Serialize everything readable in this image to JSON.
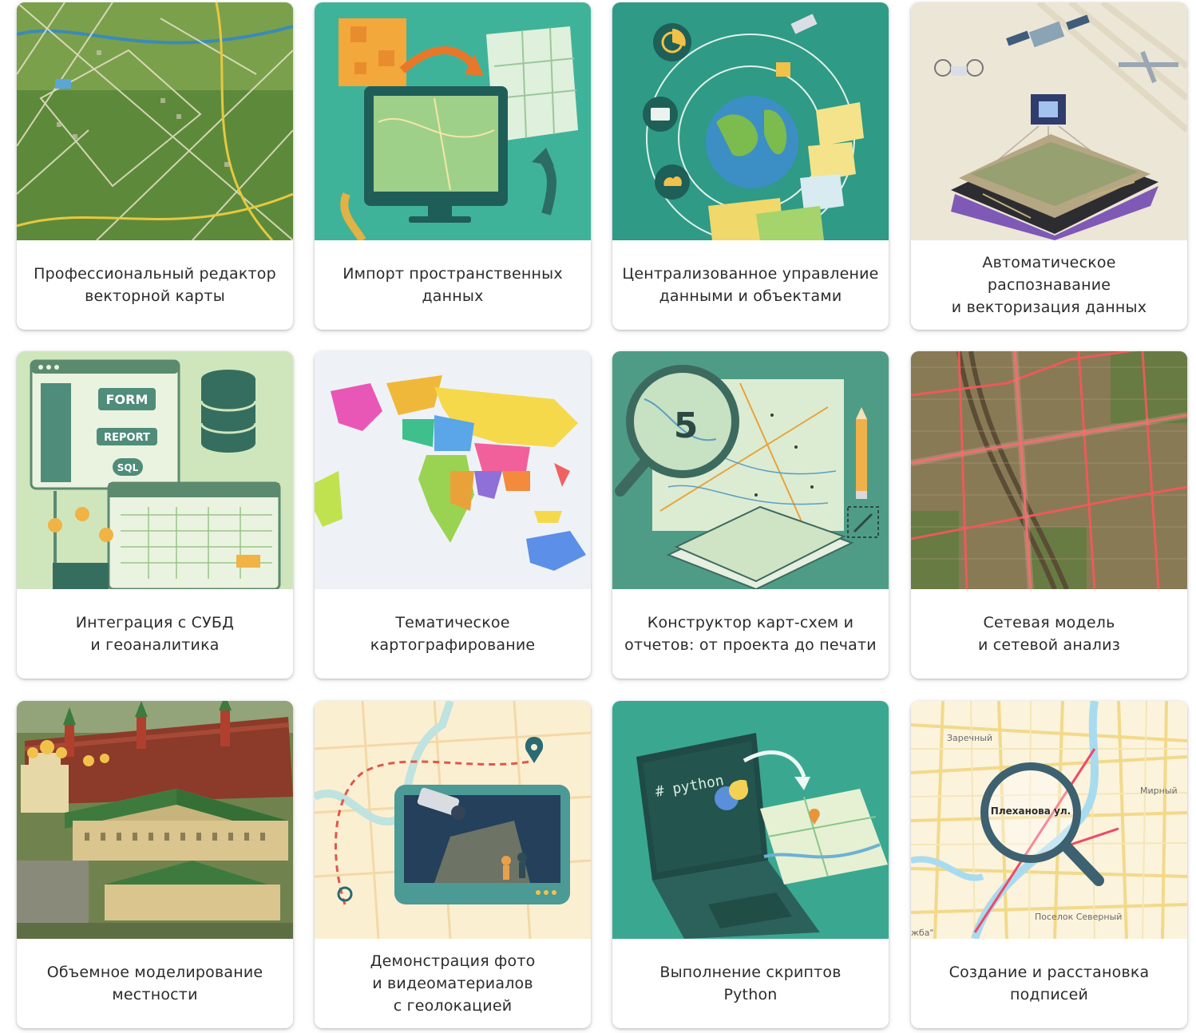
{
  "cards": [
    {
      "title": "Профессиональный редактор\nвекторной карты",
      "icon": "vector-map-aerial"
    },
    {
      "title": "Импорт пространственных\nданных",
      "icon": "monitor-import-map"
    },
    {
      "title": "Централизованное управление\nданными и объектами",
      "icon": "globe-data-orbit"
    },
    {
      "title": "Автоматическое распознавание\nи векторизация данных",
      "icon": "satellite-drone-recognition"
    },
    {
      "title": "Интеграция с СУБД\nи геоаналитика",
      "icon": "database-form-report",
      "labels": {
        "form": "FORM",
        "report": "REPORT",
        "sql": "SQL"
      }
    },
    {
      "title": "Тематическое\nкартографирование",
      "icon": "world-choropleth-map"
    },
    {
      "title": "Конструктор карт-схем и\nотчетов: от проекта до печати",
      "icon": "magnifier-map-pencil",
      "labels": {
        "number": "5"
      }
    },
    {
      "title": "Сетевая модель\nи сетевой анализ",
      "icon": "city-network-roads"
    },
    {
      "title": "Объемное моделирование\nместности",
      "icon": "kremlin-3d-model"
    },
    {
      "title": "Демонстрация фото\nи видеоматериалов\nс геолокацией",
      "icon": "camera-geolocation-map"
    },
    {
      "title": "Выполнение скриптов\nPython",
      "icon": "laptop-python-map",
      "labels": {
        "code": "# python"
      }
    },
    {
      "title": "Создание и расстановка\nподписей",
      "icon": "street-labels-magnifier",
      "labels": {
        "l1": "Заречный",
        "l2": "Мирный",
        "l3": "Плеханова ул.",
        "l4": "Поселок Северный",
        "l5": "жба\""
      }
    }
  ]
}
